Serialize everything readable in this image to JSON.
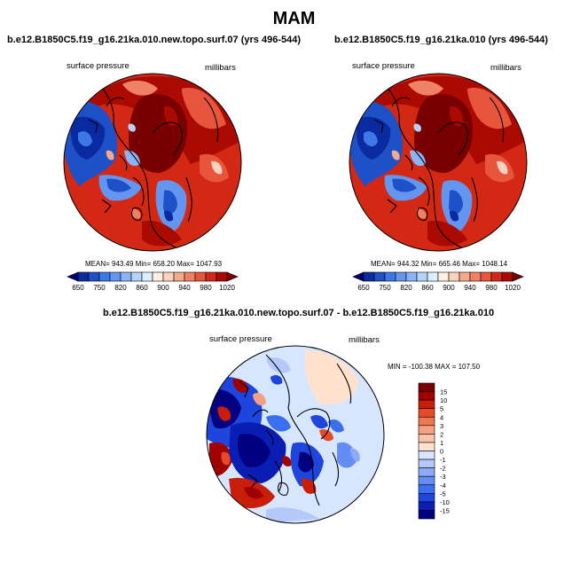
{
  "page_title": "MAM",
  "chart_data": [
    {
      "type": "heatmap",
      "projection": "north-polar-stereographic",
      "title": "b.e12.B1850C5.f19_g16.21ka.010.new.topo.surf.07 (yrs 496-544)",
      "variable": "surface pressure",
      "units": "millibars",
      "stats": {
        "mean": 943.49,
        "min": 658.2,
        "max": 1047.93
      },
      "stats_text": "MEAN= 943.49  Min= 658.20  Max= 1047.93",
      "colorbar": {
        "orientation": "horizontal",
        "levels": [
          650,
          700,
          750,
          800,
          820,
          840,
          860,
          880,
          900,
          920,
          940,
          960,
          980,
          1000,
          1020
        ],
        "tick_labels": [
          "650",
          "750",
          "820",
          "860",
          "900",
          "940",
          "980",
          "1020"
        ],
        "colors": [
          "#00006e",
          "#0a2aa0",
          "#1e50c8",
          "#3c78e6",
          "#6496f0",
          "#8cb4f5",
          "#b4d2fa",
          "#dceeff",
          "#fff0e6",
          "#fad2be",
          "#f5aa8c",
          "#f08264",
          "#e6553c",
          "#d22814",
          "#aa0a00",
          "#780000"
        ]
      }
    },
    {
      "type": "heatmap",
      "projection": "north-polar-stereographic",
      "title": "b.e12.B1850C5.f19_g16.21ka.010 (yrs 496-544)",
      "variable": "surface pressure",
      "units": "millibars",
      "stats": {
        "mean": 944.32,
        "min": 665.46,
        "max": 1048.14
      },
      "stats_text": "MEAN= 944.32  Min= 665.46  Max= 1048.14",
      "colorbar": {
        "orientation": "horizontal",
        "levels": [
          650,
          700,
          750,
          800,
          820,
          840,
          860,
          880,
          900,
          920,
          940,
          960,
          980,
          1000,
          1020
        ],
        "tick_labels": [
          "650",
          "750",
          "820",
          "860",
          "900",
          "940",
          "980",
          "1020"
        ],
        "colors": [
          "#00006e",
          "#0a2aa0",
          "#1e50c8",
          "#3c78e6",
          "#6496f0",
          "#8cb4f5",
          "#b4d2fa",
          "#dceeff",
          "#fff0e6",
          "#fad2be",
          "#f5aa8c",
          "#f08264",
          "#e6553c",
          "#d22814",
          "#aa0a00",
          "#780000"
        ]
      }
    },
    {
      "type": "heatmap",
      "projection": "north-polar-stereographic",
      "title": "b.e12.B1850C5.f19_g16.21ka.010.new.topo.surf.07 - b.e12.B1850C5.f19_g16.21ka.010",
      "variable": "surface pressure",
      "units": "millibars",
      "stats": {
        "min": -100.38,
        "max": 107.5
      },
      "stats_text": "MIN = -100.38 MAX = 107.50",
      "colorbar": {
        "orientation": "vertical",
        "levels": [
          -15,
          -10,
          -5,
          -4,
          -3,
          -2,
          -1,
          0,
          1,
          2,
          3,
          4,
          5,
          10,
          15
        ],
        "tick_labels": [
          "15",
          "10",
          "5",
          "4",
          "3",
          "2",
          "1",
          "0",
          "-1",
          "-2",
          "-3",
          "-4",
          "-5",
          "-10",
          "-15"
        ],
        "colors": [
          "#000080",
          "#0a1eb4",
          "#1e46dc",
          "#3c6ef0",
          "#648cf5",
          "#8caaf5",
          "#b4c8fa",
          "#d7e6ff",
          "#ffe1cd",
          "#fac3aa",
          "#f5a082",
          "#f07850",
          "#e64b28",
          "#c81e0a",
          "#a00000",
          "#780000"
        ]
      }
    }
  ]
}
